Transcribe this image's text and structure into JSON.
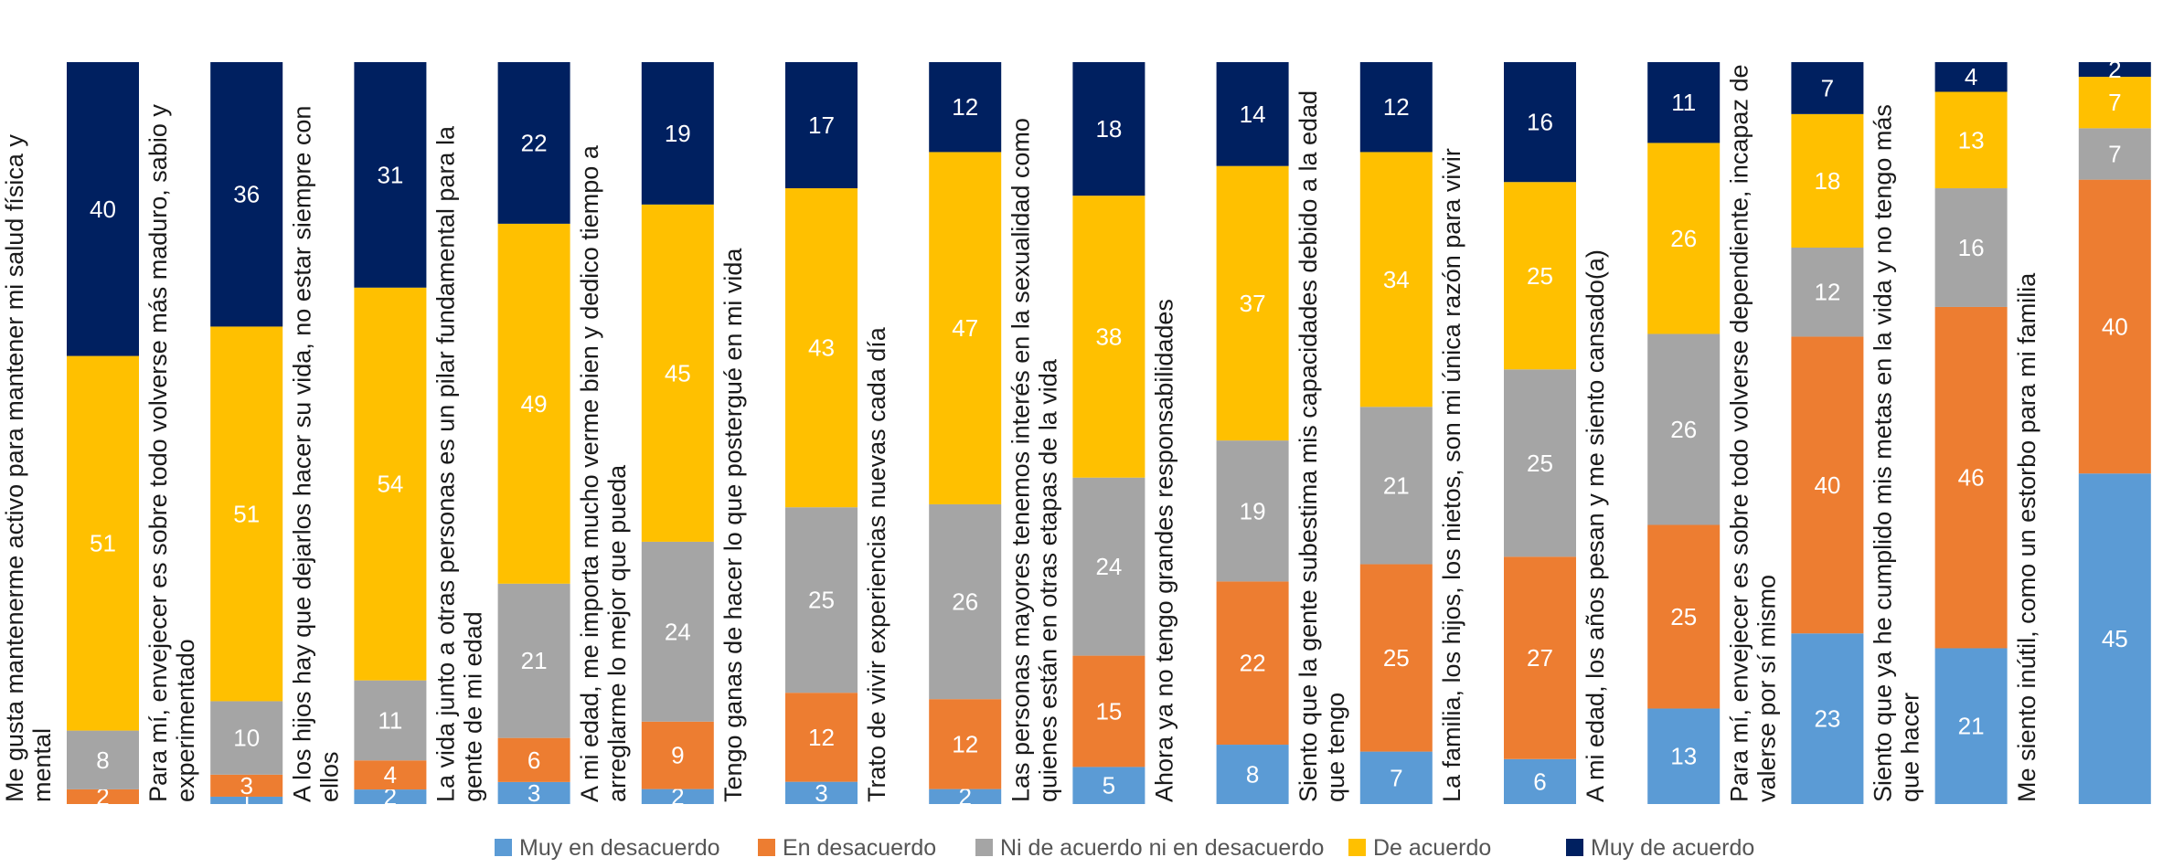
{
  "chart_data": {
    "type": "bar",
    "stacked": true,
    "orientation": "vertical",
    "unit": "percent",
    "categories": [
      "Me gusta mantenerme activo para mantener mi salud física y mental",
      "Para mí, envejecer es sobre todo volverse más maduro, sabio y experimentado",
      "A los hijos hay que dejarlos hacer su vida, no estar siempre con ellos",
      "La vida junto a otras personas es un pilar fundamental para la gente de mi edad",
      "A mi edad, me importa mucho verme bien y dedico tiempo a arreglarme lo mejor que pueda",
      "Tengo ganas de hacer lo que postergué en mi vida",
      "Trato de vivir experiencias nuevas cada día",
      "Las personas mayores tenemos interés en la sexualidad como quienes están en otras etapas de la vida",
      "Ahora ya no tengo grandes responsabilidades",
      "Siento que la gente subestima mis capacidades debido a la edad que tengo",
      "La familia, los hijos, los nietos, son mi única razón para vivir",
      "A mi edad, los años pesan y me siento cansado(a)",
      "Para mí, envejecer es sobre todo volverse dependiente, incapaz de valerse por sí mismo",
      "Siento que ya he cumplido mis metas en la vida y no tengo más que hacer",
      "Me siento inútil, como un estorbo para mi familia"
    ],
    "label_lines": [
      [
        "Me gusta mantenerme activo para mantener mi salud física y",
        "mental"
      ],
      [
        "Para mí, envejecer es sobre todo volverse más maduro, sabio y",
        "experimentado"
      ],
      [
        "A los hijos hay que dejarlos hacer su vida, no estar siempre con",
        "ellos"
      ],
      [
        "La vida junto a otras personas es un pilar fundamental para la",
        "gente de mi edad"
      ],
      [
        "A mi edad, me importa mucho verme bien y dedico tiempo a",
        "arreglarme lo mejor que pueda"
      ],
      [
        "Tengo ganas de hacer lo que postergué en mi vida"
      ],
      [
        "Trato de vivir experiencias nuevas cada día"
      ],
      [
        "Las personas mayores tenemos interés en la sexualidad como",
        "quienes están en otras etapas de la vida"
      ],
      [
        "Ahora ya no tengo grandes responsabilidades"
      ],
      [
        "Siento que la gente subestima mis capacidades debido a la edad",
        "que tengo"
      ],
      [
        "La familia, los hijos, los nietos, son mi única razón para vivir"
      ],
      [
        "A mi edad, los años pesan y me siento cansado(a)"
      ],
      [
        "Para mí, envejecer es sobre todo volverse dependiente, incapaz de",
        "valerse por sí mismo"
      ],
      [
        "Siento que ya he cumplido mis metas en la vida y no tengo más",
        "que hacer"
      ],
      [
        "Me siento inútil, como un estorbo para mi familia"
      ]
    ],
    "series": [
      {
        "name": "Muy en desacuerdo",
        "color": "#5b9bd5",
        "values": [
          0,
          1,
          2,
          3,
          2,
          3,
          2,
          5,
          8,
          7,
          6,
          13,
          23,
          21,
          45
        ]
      },
      {
        "name": "En desacuerdo",
        "color": "#ed7d31",
        "values": [
          2,
          3,
          4,
          6,
          9,
          12,
          12,
          15,
          22,
          25,
          27,
          25,
          40,
          46,
          40
        ]
      },
      {
        "name": "Ni de acuerdo ni en desacuerdo",
        "color": "#a5a5a5",
        "values": [
          8,
          10,
          11,
          21,
          24,
          25,
          26,
          24,
          19,
          21,
          25,
          26,
          12,
          16,
          7
        ]
      },
      {
        "name": "De acuerdo",
        "color": "#ffc000",
        "values": [
          51,
          51,
          54,
          49,
          45,
          43,
          47,
          38,
          37,
          34,
          25,
          26,
          18,
          13,
          7
        ]
      },
      {
        "name": "Muy de acuerdo",
        "color": "#002060",
        "values": [
          40,
          36,
          31,
          22,
          19,
          17,
          12,
          18,
          14,
          12,
          16,
          11,
          7,
          4,
          2
        ]
      }
    ],
    "legend_position": "bottom",
    "grid": false
  }
}
